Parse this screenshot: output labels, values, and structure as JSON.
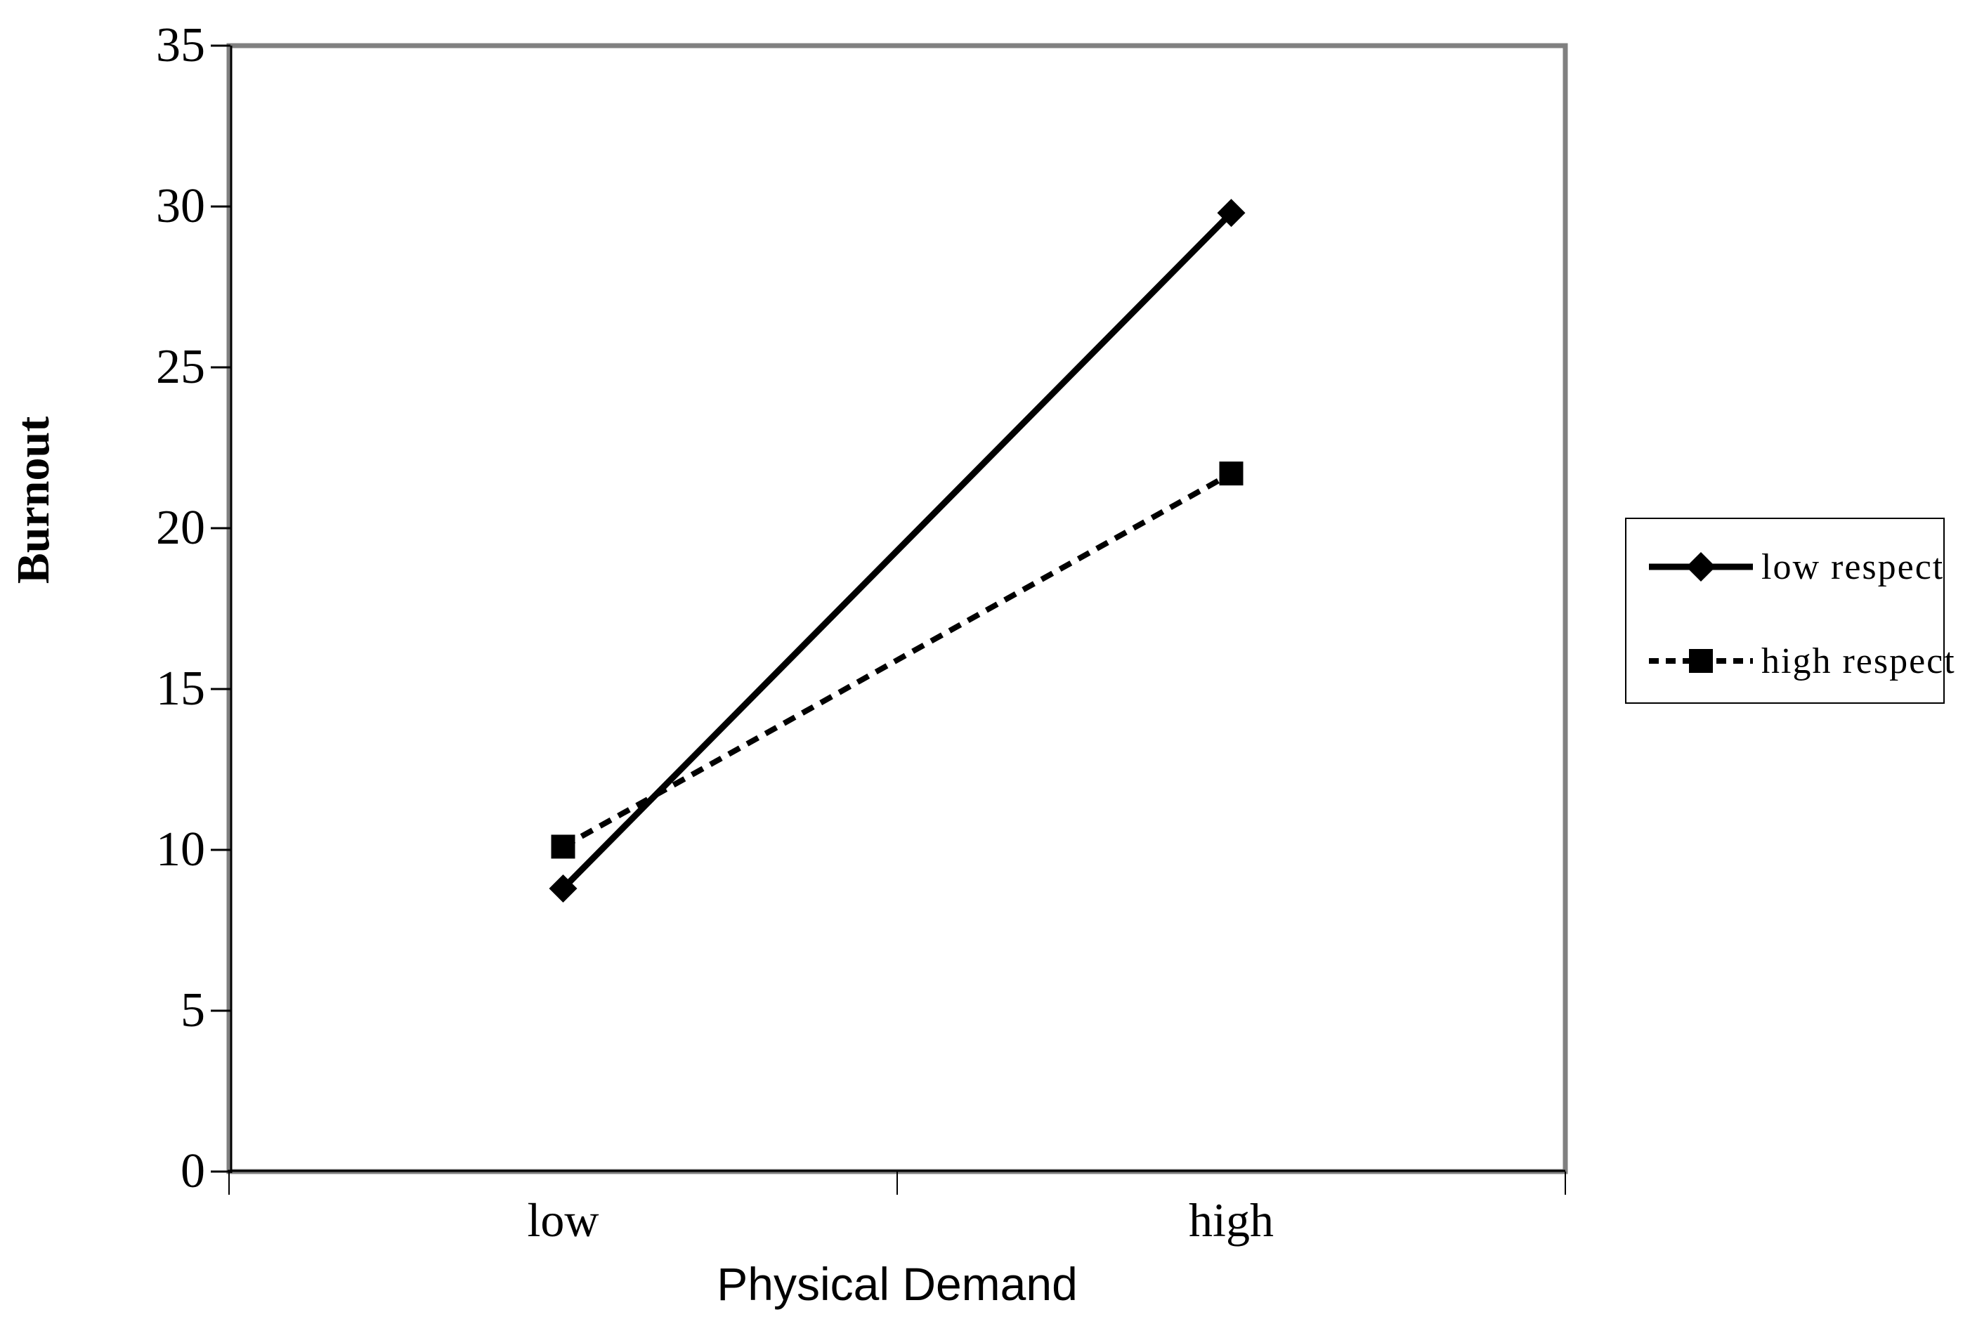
{
  "chart_data": {
    "type": "line",
    "title": "",
    "xlabel": "Physical Demand",
    "ylabel": "Burnout",
    "categories": [
      "low",
      "high"
    ],
    "series": [
      {
        "name": "low respect",
        "values": [
          8.8,
          29.8
        ],
        "line_style": "solid",
        "marker": "diamond",
        "color": "#000000"
      },
      {
        "name": "high respect",
        "values": [
          10.1,
          21.7
        ],
        "line_style": "dashed",
        "marker": "square",
        "color": "#000000"
      }
    ],
    "ylim": [
      0,
      35
    ],
    "ytick_step": 5,
    "yticks": [
      0,
      5,
      10,
      15,
      20,
      25,
      30,
      35
    ],
    "grid": false,
    "legend_position": "right",
    "colors": {
      "background": "#ffffff",
      "plot_frame": "#808080",
      "axis_line": "#000000",
      "text": "#000000"
    }
  }
}
